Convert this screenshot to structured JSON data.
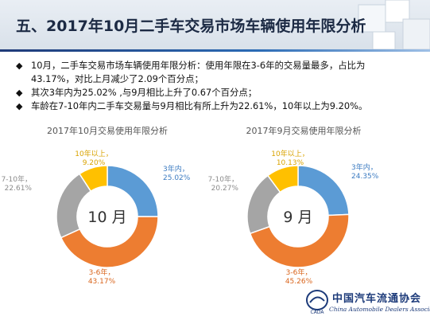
{
  "header": {
    "title": "五、2017年10月二手车交易市场车辆使用年限分析"
  },
  "bullets": [
    "10月，二手车交易市场车辆使用年限分析：使用年限在3-6年的交易量最多，占比为",
    "43.17%，对比上月减少了2.09个百分点；",
    "其次3年内为25.02% ,与9月相比上升了0.67个百分点；",
    "车龄在7-10年内二手车交易量与9月相比有所上升为22.61%，10年以上为9.20%。"
  ],
  "colors": {
    "within3": "#5b9bd5",
    "y3to6": "#ed7d31",
    "y7to10": "#a5a5a5",
    "over10": "#ffc000",
    "accent": "#1f3a78"
  },
  "chart_data": [
    {
      "type": "pie",
      "title": "2017年10月交易使用年限分析",
      "center_label": "10 月",
      "slices": [
        {
          "name": "3年内",
          "value": 25.02,
          "label": "25.02%"
        },
        {
          "name": "3-6年",
          "value": 43.17,
          "label": "43.17%"
        },
        {
          "name": "7-10年",
          "value": 22.61,
          "label": "22.61%"
        },
        {
          "name": "10年以上",
          "value": 9.2,
          "label": "9.20%"
        }
      ]
    },
    {
      "type": "pie",
      "title": "2017年9月交易使用年限分析",
      "center_label": "9 月",
      "slices": [
        {
          "name": "3年内",
          "value": 24.35,
          "label": "24.35%"
        },
        {
          "name": "3-6年",
          "value": 45.26,
          "label": "45.26%"
        },
        {
          "name": "7-10年",
          "value": 20.27,
          "label": "20.27%"
        },
        {
          "name": "10年以上",
          "value": 10.13,
          "label": "10.13%"
        }
      ]
    }
  ],
  "footer": {
    "org_cn": "中国汽车流通协会",
    "org_en": "China Automobile Dealers Association",
    "logo_text": "CADA"
  }
}
